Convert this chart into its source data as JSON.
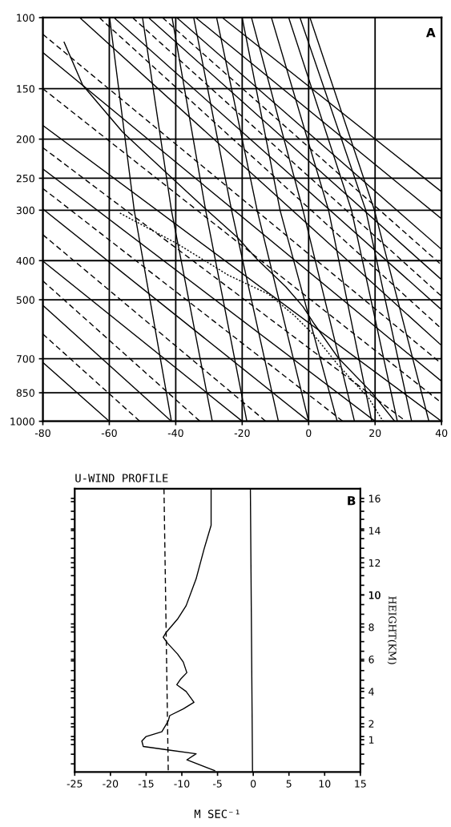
{
  "chart_data": [
    {
      "type": "line",
      "log": "y",
      "grid": true,
      "annotations": [
        "A"
      ],
      "xlim": [
        -80,
        40
      ],
      "xticks": [
        -80,
        -60,
        -40,
        -20,
        0,
        20,
        40
      ],
      "ylim": [
        1000,
        100
      ],
      "yticks": [
        100,
        150,
        200,
        250,
        300,
        400,
        500,
        700,
        850,
        1000
      ],
      "series": [
        {
          "color": "#000000",
          "line_style": "solid",
          "x": [
            -73.6,
            -68.0,
            -56.0,
            -41.3,
            -31.0,
            -21.5,
            -15.5,
            -6.9,
            -1.7,
            1.7,
            9.0,
            19.0,
            25.9
          ],
          "values": [
            115,
            147,
            192,
            249,
            298,
            350,
            397,
            464,
            520,
            574,
            698,
            849,
            1000
          ]
        },
        {
          "color": "#000000",
          "line_style": "dotted",
          "x": [
            -56.8,
            -39.6,
            -24.1,
            -12.1,
            -4.3,
            1.7,
            8.6,
            18.1,
            22.4
          ],
          "values": [
            305,
            363,
            435,
            484,
            547,
            613,
            721,
            877,
            1000
          ]
        },
        {
          "color": "#000000",
          "line_style": "solid",
          "x": [
            -80,
            -60
          ],
          "values": [
            715,
            1000
          ]
        },
        {
          "color": "#000000",
          "line_style": "solid",
          "x": [
            -80,
            -41.3
          ],
          "values": [
            516,
            1000
          ]
        },
        {
          "color": "#000000",
          "line_style": "solid",
          "x": [
            -80,
            -20
          ],
          "values": [
            401,
            1000
          ]
        },
        {
          "color": "#000000",
          "line_style": "solid",
          "x": [
            -80,
            0
          ],
          "values": [
            298,
            1000
          ]
        },
        {
          "color": "#000000",
          "line_style": "solid",
          "x": [
            -80,
            20
          ],
          "values": [
            237,
            1000
          ]
        },
        {
          "color": "#000000",
          "line_style": "solid",
          "x": [
            -80,
            40
          ],
          "values": [
            185,
            1000
          ]
        },
        {
          "color": "#000000",
          "line_style": "solid",
          "x": [
            -80,
            40
          ],
          "values": [
            122,
            796
          ]
        },
        {
          "color": "#000000",
          "line_style": "solid",
          "x": [
            -68.9,
            40
          ],
          "values": [
            100,
            649
          ]
        },
        {
          "color": "#000000",
          "line_style": "solid",
          "x": [
            -58.6,
            40
          ],
          "values": [
            100,
            529
          ]
        },
        {
          "color": "#000000",
          "line_style": "solid",
          "x": [
            -48.2,
            40
          ],
          "values": [
            100,
            446
          ]
        },
        {
          "color": "#000000",
          "line_style": "solid",
          "x": [
            -39.7,
            40
          ],
          "values": [
            100,
            375
          ]
        },
        {
          "color": "#000000",
          "line_style": "solid",
          "x": [
            -34,
            40
          ],
          "values": [
            100,
            315
          ]
        },
        {
          "color": "#000000",
          "line_style": "solid",
          "x": [
            -26,
            40
          ],
          "values": [
            100,
            270
          ]
        },
        {
          "color": "#000000",
          "line_style": "dashed",
          "x": [
            -80,
            -50.8
          ],
          "values": [
            608,
            1000
          ]
        },
        {
          "color": "#000000",
          "line_style": "dashed",
          "x": [
            -80,
            -32.7
          ],
          "values": [
            449,
            1000
          ]
        },
        {
          "color": "#000000",
          "line_style": "dashed",
          "x": [
            -80,
            -12.9
          ],
          "values": [
            345,
            1000
          ]
        },
        {
          "color": "#000000",
          "line_style": "dashed",
          "x": [
            -80,
            10.3
          ],
          "values": [
            265,
            1000
          ]
        },
        {
          "color": "#000000",
          "line_style": "dashed",
          "x": [
            -80,
            29.3
          ],
          "values": [
            210,
            1000
          ]
        },
        {
          "color": "#000000",
          "line_style": "dashed",
          "x": [
            -80,
            40
          ],
          "values": [
            150,
            900
          ]
        },
        {
          "color": "#000000",
          "line_style": "dashed",
          "x": [
            -80,
            40
          ],
          "values": [
            110,
            720
          ]
        },
        {
          "color": "#000000",
          "line_style": "dashed",
          "x": [
            -63,
            40
          ],
          "values": [
            100,
            590
          ]
        },
        {
          "color": "#000000",
          "line_style": "dashed",
          "x": [
            -53,
            40
          ],
          "values": [
            100,
            490
          ]
        },
        {
          "color": "#000000",
          "line_style": "dashed",
          "x": [
            -44,
            40
          ],
          "values": [
            100,
            410
          ]
        },
        {
          "color": "#000000",
          "line_style": "solid",
          "x": [
            -59.9,
            -52.5,
            -41.3
          ],
          "values": [
            100,
            300,
            1000
          ]
        },
        {
          "color": "#000000",
          "line_style": "solid",
          "x": [
            -50.0,
            -41.3,
            -29.0
          ],
          "values": [
            100,
            300,
            1000
          ]
        },
        {
          "color": "#000000",
          "line_style": "solid",
          "x": [
            -41.1,
            -31.0,
            -18.6
          ],
          "values": [
            100,
            300,
            1000
          ]
        },
        {
          "color": "#000000",
          "line_style": "solid",
          "x": [
            -34.6,
            -23.2,
            -9.1
          ],
          "values": [
            100,
            300,
            1000
          ]
        },
        {
          "color": "#000000",
          "line_style": "solid",
          "x": [
            -27.7,
            -15.5,
            0
          ],
          "values": [
            100,
            300,
            1000
          ]
        },
        {
          "color": "#000000",
          "line_style": "solid",
          "x": [
            -20.0,
            -8.6,
            8.6
          ],
          "values": [
            100,
            300,
            1000
          ]
        },
        {
          "color": "#000000",
          "line_style": "solid",
          "x": [
            -17.2,
            -1.7,
            13.8
          ],
          "values": [
            100,
            300,
            1000
          ]
        },
        {
          "color": "#000000",
          "line_style": "solid",
          "x": [
            -11.2,
            6.0,
            19.0
          ],
          "values": [
            100,
            300,
            1000
          ]
        },
        {
          "color": "#000000",
          "line_style": "solid",
          "x": [
            -6.0,
            12.9,
            26.7
          ],
          "values": [
            100,
            300,
            1000
          ]
        },
        {
          "color": "#000000",
          "line_style": "solid",
          "x": [
            -2.6,
            17.2,
            31.0
          ],
          "values": [
            100,
            300,
            1000
          ]
        },
        {
          "color": "#000000",
          "line_style": "solid",
          "x": [
            0.4,
            19.8,
            36.2
          ],
          "values": [
            100,
            300,
            1000
          ]
        }
      ]
    },
    {
      "type": "line",
      "title": "U-WIND PROFILE",
      "xlabel": "M SEC⁻¹",
      "ylabel": "HEIGHT(KM)",
      "annotations": [
        "B"
      ],
      "grid": false,
      "xlim": [
        -25,
        15
      ],
      "xticks": [
        -25,
        -20,
        -15,
        -10,
        -5,
        0,
        5,
        10,
        15
      ],
      "ylim": [
        -1,
        16.6
      ],
      "yticks": [
        {
          "value": -0.5,
          "label": null
        },
        {
          "value": 0.1,
          "label": null
        },
        {
          "value": 0.7,
          "label": null
        },
        {
          "value": 1.2,
          "label": null
        },
        {
          "value": 1.8,
          "label": null
        },
        {
          "value": 2.4,
          "label": null
        },
        {
          "value": 3.0,
          "label": null
        },
        {
          "value": 3.6,
          "label": null
        },
        {
          "value": 4.2,
          "label": null
        },
        {
          "value": 4.7,
          "label": null
        },
        {
          "value": 5.3,
          "label": null
        },
        {
          "value": 5.9,
          "label": null
        },
        {
          "value": 6.5,
          "label": null
        },
        {
          "value": 7.1,
          "label": null
        },
        {
          "value": 7.7,
          "label": null
        },
        {
          "value": 8.2,
          "label": null
        },
        {
          "value": 8.8,
          "label": null
        },
        {
          "value": 9.4,
          "label": null
        },
        {
          "value": 10.0,
          "label": null
        },
        {
          "value": 10.6,
          "label": null
        },
        {
          "value": 11.2,
          "label": null
        },
        {
          "value": 11.7,
          "label": null
        },
        {
          "value": 12.3,
          "label": null
        },
        {
          "value": 12.9,
          "label": null
        },
        {
          "value": 13.5,
          "label": null
        },
        {
          "value": 14.1,
          "label": null
        },
        {
          "value": 14.7,
          "label": null
        },
        {
          "value": 15.2,
          "label": null
        },
        {
          "value": 15.8,
          "label": null
        },
        1,
        2,
        4,
        6,
        8,
        10,
        12,
        14,
        16
      ],
      "series": [
        {
          "color": "#000000",
          "line_style": "solid",
          "x": [
            -5.4,
            -9.3,
            -8.0,
            -12.0,
            -15.4,
            -15.6,
            -15.0,
            -12.8,
            -11.9,
            -11.7,
            -9.8,
            -8.3,
            -9.4,
            -10.7,
            -10.2,
            -9.3,
            -9.8,
            -10.6,
            -12.0,
            -12.6,
            -12.2,
            -10.6,
            -9.4,
            -8.0,
            -6.9,
            -5.9,
            -5.9
          ],
          "values": [
            -0.92,
            -0.25,
            0.13,
            0.37,
            0.58,
            0.92,
            1.2,
            1.5,
            2.17,
            2.5,
            2.92,
            3.33,
            4.0,
            4.42,
            4.75,
            5.17,
            5.83,
            6.33,
            7.0,
            7.37,
            7.67,
            8.5,
            9.33,
            11.0,
            12.83,
            14.33,
            16.6
          ]
        },
        {
          "color": "#000000",
          "line_style": "dashed",
          "x": [
            -12.5,
            -11.9
          ],
          "values": [
            16.6,
            -1
          ]
        },
        {
          "color": "#000000",
          "line_style": "solid",
          "x": [
            -0.4,
            -0.1
          ],
          "values": [
            16.6,
            -1
          ]
        }
      ]
    }
  ]
}
